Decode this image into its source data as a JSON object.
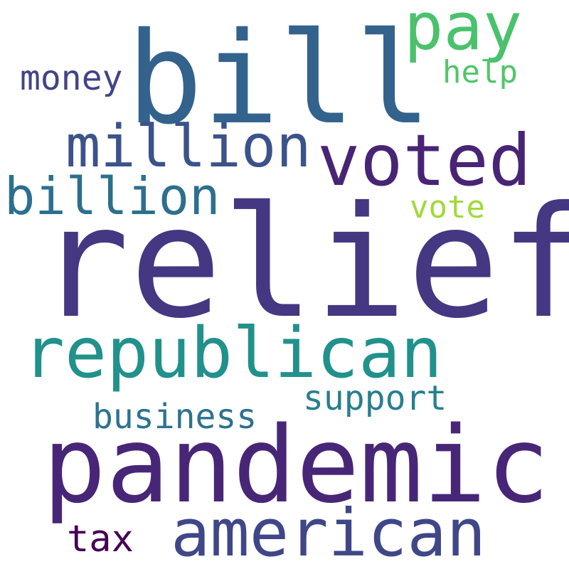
{
  "words": {
    "relief": {
      "text": "relief",
      "color": "#453781"
    },
    "bill": {
      "text": "bill",
      "color": "#33638d"
    },
    "pandemic": {
      "text": "pandemic",
      "color": "#482677"
    },
    "republican": {
      "text": "republican",
      "color": "#21918c"
    },
    "voted": {
      "text": "voted",
      "color": "#482475"
    },
    "american": {
      "text": "american",
      "color": "#3f4788"
    },
    "million": {
      "text": "million",
      "color": "#3b528b"
    },
    "billion": {
      "text": "billion",
      "color": "#2d6f8e"
    },
    "pay": {
      "text": "pay",
      "color": "#4ac16d"
    },
    "support": {
      "text": "support",
      "color": "#277f8e"
    },
    "business": {
      "text": "business",
      "color": "#2c728e"
    },
    "money": {
      "text": "money",
      "color": "#414487"
    },
    "help": {
      "text": "help",
      "color": "#52c569"
    },
    "vote": {
      "text": "vote",
      "color": "#a0da39"
    },
    "tax": {
      "text": "tax",
      "color": "#440154"
    }
  }
}
